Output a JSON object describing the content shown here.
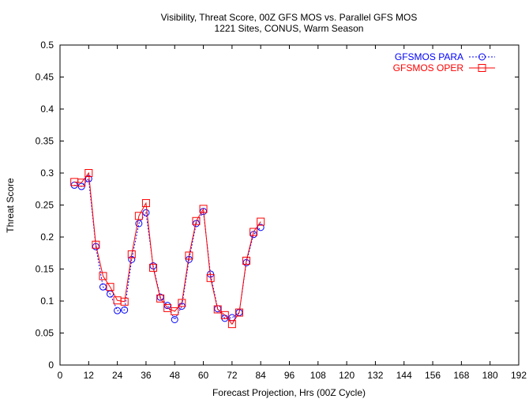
{
  "chart_data": {
    "type": "line",
    "title": "Visibility, Threat Score, 00Z GFS MOS vs. Parallel GFS MOS",
    "subtitle": "1221 Sites, CONUS, Warm Season",
    "xlabel": "Forecast Projection, Hrs (00Z Cycle)",
    "ylabel": "Threat Score",
    "xlim": [
      0,
      192
    ],
    "ylim": [
      0,
      0.5
    ],
    "xticks": [
      0,
      12,
      24,
      36,
      48,
      60,
      72,
      84,
      96,
      108,
      120,
      132,
      144,
      156,
      168,
      180,
      192
    ],
    "yticks": [
      0,
      0.05,
      0.1,
      0.15,
      0.2,
      0.25,
      0.3,
      0.35,
      0.4,
      0.45,
      0.5
    ],
    "xtick_labels": [
      "0",
      "12",
      "24",
      "36",
      "48",
      "60",
      "72",
      "84",
      "96",
      "108",
      "120",
      "132",
      "144",
      "156",
      "168",
      "180",
      "192"
    ],
    "ytick_labels": [
      "0",
      "0.05",
      "0.1",
      "0.15",
      "0.2",
      "0.25",
      "0.3",
      "0.35",
      "0.4",
      "0.45",
      "0.5"
    ],
    "grid": false,
    "legend_position": "top-right",
    "x": [
      6,
      9,
      12,
      15,
      18,
      21,
      24,
      27,
      30,
      33,
      36,
      39,
      42,
      45,
      48,
      51,
      54,
      57,
      60,
      63,
      66,
      69,
      72,
      75,
      78,
      81,
      84
    ],
    "series": [
      {
        "name": "GFSMOS PARA",
        "color": "#0000ff",
        "marker": "circle",
        "line_style": "dotted",
        "values": [
          0.281,
          0.279,
          0.291,
          0.185,
          0.122,
          0.111,
          0.085,
          0.086,
          0.165,
          0.221,
          0.238,
          0.155,
          0.106,
          0.093,
          0.071,
          0.092,
          0.165,
          0.221,
          0.24,
          0.142,
          0.088,
          0.073,
          0.074,
          0.082,
          0.16,
          0.204,
          0.215
        ]
      },
      {
        "name": "GFSMOS OPER",
        "color": "#ff0000",
        "marker": "square",
        "line_style": "solid",
        "values": [
          0.286,
          0.285,
          0.3,
          0.188,
          0.139,
          0.122,
          0.101,
          0.099,
          0.173,
          0.233,
          0.253,
          0.152,
          0.104,
          0.089,
          0.084,
          0.097,
          0.171,
          0.225,
          0.244,
          0.136,
          0.087,
          0.078,
          0.064,
          0.082,
          0.163,
          0.208,
          0.224
        ]
      }
    ]
  }
}
